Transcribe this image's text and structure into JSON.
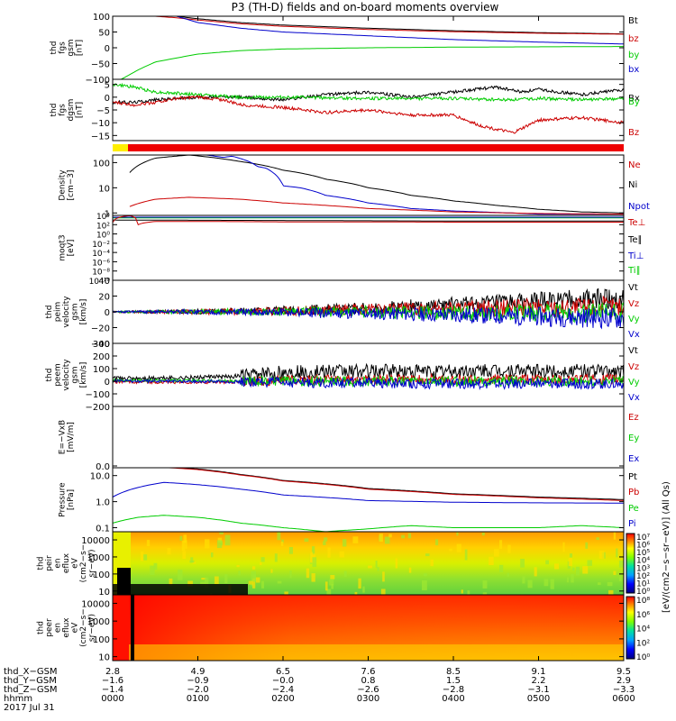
{
  "title": "P3 (TH-D) fields and on-board moments overview",
  "chart_data": [
    {
      "type": "line",
      "id": "fgs",
      "ylabel": [
        "thd",
        "fgs",
        "gsm",
        "[nT]"
      ],
      "ylim": [
        -100,
        100
      ],
      "yticks": [
        100,
        50,
        0,
        -50,
        -100
      ],
      "yticklabels": [
        "100",
        "50",
        "0",
        "−50",
        "−100"
      ],
      "scale": "linear",
      "legend": [
        {
          "label": "Bt",
          "color": "#000000"
        },
        {
          "label": "bz",
          "color": "#cc0000"
        },
        {
          "label": "by",
          "color": "#00cc00"
        },
        {
          "label": "bx",
          "color": "#0000cc"
        }
      ],
      "series": [
        {
          "name": "Bt",
          "color": "#000000",
          "x": [
            0.75,
            1,
            1.5,
            2,
            3,
            4,
            5,
            6
          ],
          "y": [
            100,
            92,
            80,
            72,
            62,
            54,
            48,
            44
          ]
        },
        {
          "name": "bz",
          "color": "#cc0000",
          "x": [
            0.5,
            0.75,
            1,
            1.5,
            2,
            3,
            4,
            5,
            6
          ],
          "y": [
            100,
            95,
            88,
            76,
            68,
            58,
            51,
            46,
            43
          ]
        },
        {
          "name": "bx",
          "color": "#0000cc",
          "x": [
            0.75,
            1,
            1.5,
            2,
            3,
            4,
            5,
            6
          ],
          "y": [
            100,
            80,
            62,
            50,
            38,
            26,
            18,
            12
          ]
        },
        {
          "name": "by",
          "color": "#00cc00",
          "x": [
            0.1,
            0.3,
            0.5,
            1,
            1.5,
            2,
            3,
            4,
            5,
            6
          ],
          "y": [
            -100,
            -70,
            -45,
            -20,
            -9,
            -4,
            0,
            2,
            3,
            4
          ]
        }
      ]
    },
    {
      "type": "line",
      "id": "fgs_dgsm",
      "ylabel": [
        "thd",
        "fgs",
        "dgsm",
        "[nT]"
      ],
      "ylim": [
        -17,
        7
      ],
      "yticks": [
        5,
        0,
        -5,
        -10,
        -15
      ],
      "yticklabels": [
        "5",
        "0",
        "−5",
        "−10",
        "−15"
      ],
      "scale": "linear",
      "legend": [
        {
          "label": "Bx",
          "color": "#000000"
        },
        {
          "label": "By",
          "color": "#00cc00"
        },
        {
          "label": "Bz",
          "color": "#cc0000"
        }
      ],
      "series": [
        {
          "name": "Bx",
          "color": "#000000",
          "x": [
            0,
            0.25,
            0.5,
            1,
            1.5,
            2,
            2.5,
            3,
            3.5,
            4,
            4.5,
            4.8,
            5,
            5.5,
            6
          ],
          "y": [
            -2,
            -2,
            -1,
            0,
            0,
            -1,
            1,
            2,
            0,
            2,
            4,
            2,
            3,
            1,
            3
          ]
        },
        {
          "name": "By",
          "color": "#00cc00",
          "x": [
            0,
            0.25,
            0.5,
            1,
            1.5,
            2,
            3,
            4,
            4.6,
            5,
            5.5,
            6
          ],
          "y": [
            5,
            4,
            2,
            1,
            0,
            0,
            -0.5,
            -0.5,
            -1,
            -0.5,
            -1,
            -0.5
          ]
        },
        {
          "name": "Bz",
          "color": "#cc0000",
          "x": [
            0,
            0.25,
            0.5,
            0.75,
            1,
            1.3,
            1.5,
            2,
            2.5,
            3,
            3.5,
            4,
            4.3,
            4.7,
            5,
            5.5,
            6
          ],
          "y": [
            -2,
            -3,
            -2,
            -0.5,
            0,
            -1,
            -3,
            -4,
            -6,
            -5,
            -7,
            -7,
            -11,
            -14,
            -9,
            -8,
            -10
          ]
        }
      ]
    },
    {
      "type": "line",
      "id": "density",
      "ylabel": [
        "Density",
        "[cm−3]"
      ],
      "ylim": [
        0.8,
        200
      ],
      "yticks": [
        100,
        10,
        1
      ],
      "yticklabels": [
        "100",
        "10",
        "1"
      ],
      "scale": "log",
      "legend": [
        {
          "label": "Ne",
          "color": "#cc0000"
        },
        {
          "label": "Ni",
          "color": "#000000"
        },
        {
          "label": "Npot",
          "color": "#0000cc"
        }
      ],
      "series": [
        {
          "name": "Ni",
          "color": "#000000",
          "x": [
            0.2,
            0.5,
            0.9,
            1.5,
            2,
            2.5,
            3,
            3.5,
            4,
            4.5,
            5,
            5.5,
            6
          ],
          "y": [
            40,
            150,
            200,
            110,
            50,
            22,
            10,
            5,
            3,
            2,
            1.4,
            1.1,
            1
          ]
        },
        {
          "name": "Npot",
          "color": "#0000cc",
          "x": [
            1.1,
            1.3,
            1.4,
            1.6,
            1.7,
            1.8,
            2,
            2.2,
            2.5,
            3,
            3.5,
            4,
            5,
            6
          ],
          "y": [
            200,
            160,
            180,
            110,
            70,
            60,
            12,
            10,
            5,
            2.5,
            1.5,
            1.2,
            0.9,
            0.9
          ]
        },
        {
          "name": "Ne",
          "color": "#cc0000",
          "x": [
            0.2,
            0.5,
            0.9,
            1.5,
            2,
            3,
            4,
            5,
            6
          ],
          "y": [
            1.8,
            3.5,
            4.2,
            3.5,
            2.5,
            1.5,
            1.1,
            0.95,
            0.9
          ]
        }
      ]
    },
    {
      "type": "line",
      "id": "moqt",
      "ylabel": [
        "moqt3",
        "[eV]"
      ],
      "ylim": [
        1e-10,
        10000.0
      ],
      "yticks": [
        10000.0,
        100.0,
        1.0,
        0.01,
        0.0001,
        1e-06,
        1e-08,
        1e-10
      ],
      "yticklabels": [
        "10⁴",
        "10²",
        "10⁰",
        "10⁻²",
        "10⁻⁴",
        "10⁻⁶",
        "10⁻⁸",
        "10⁻¹⁰"
      ],
      "scale": "log",
      "legend": [
        {
          "label": "Te⊥",
          "color": "#cc0000"
        },
        {
          "label": "Te∥",
          "color": "#000000"
        },
        {
          "label": "Ti⊥",
          "color": "#0000cc"
        },
        {
          "label": "Ti∥",
          "color": "#00cc00"
        }
      ],
      "series": [
        {
          "name": "Ti∥",
          "color": "#00cc00",
          "x": [
            0,
            1,
            2,
            3,
            4,
            5,
            6
          ],
          "y": [
            3000,
            3000,
            3000,
            3000,
            3000,
            3000,
            3000
          ]
        },
        {
          "name": "Ti⊥",
          "color": "#0000cc",
          "x": [
            0,
            1,
            2,
            3,
            4,
            5,
            6
          ],
          "y": [
            4000,
            4000,
            4000,
            4000,
            4000,
            4000,
            4000
          ]
        },
        {
          "name": "Te∥",
          "color": "#000000",
          "x": [
            0,
            1,
            2,
            3,
            4,
            5,
            6
          ],
          "y": [
            1000,
            900,
            800,
            700,
            600,
            600,
            600
          ]
        },
        {
          "name": "Te⊥",
          "color": "#cc0000",
          "x": [
            0,
            0.2,
            0.3,
            0.5,
            1,
            2,
            3,
            4,
            5,
            6
          ],
          "y": [
            300,
            9000,
            100,
            500,
            500,
            400,
            400,
            350,
            350,
            350
          ]
        }
      ]
    },
    {
      "type": "line",
      "id": "peim_velocity",
      "ylabel": [
        "thd",
        "peim",
        "velocity",
        "gsm",
        "[km/s]"
      ],
      "ylim": [
        -40,
        40
      ],
      "yticks": [
        40,
        20,
        0,
        -20,
        -40
      ],
      "yticklabels": [
        "40",
        "20",
        "0",
        "−20",
        "−40"
      ],
      "scale": "linear",
      "legend": [
        {
          "label": "Vt",
          "color": "#000000"
        },
        {
          "label": "Vz",
          "color": "#cc0000"
        },
        {
          "label": "Vy",
          "color": "#00cc00"
        },
        {
          "label": "Vx",
          "color": "#0000cc"
        }
      ],
      "series": [
        {
          "name": "Vt",
          "color": "#000000",
          "x": [
            0,
            1,
            2,
            3,
            4,
            5,
            6
          ],
          "y": [
            0,
            0,
            2,
            5,
            9,
            13,
            18
          ]
        },
        {
          "name": "Vz",
          "color": "#cc0000",
          "x": [
            0,
            1,
            2,
            3,
            4,
            5,
            6
          ],
          "y": [
            0,
            0,
            1,
            3,
            4,
            5,
            6
          ]
        },
        {
          "name": "Vy",
          "color": "#00cc00",
          "x": [
            0,
            1,
            2,
            3,
            4,
            5,
            6
          ],
          "y": [
            0,
            0,
            0,
            0,
            -1,
            -1,
            -2
          ]
        },
        {
          "name": "Vx",
          "color": "#0000cc",
          "x": [
            0,
            1,
            2,
            3,
            4,
            5,
            6
          ],
          "y": [
            0,
            0,
            -1,
            -2,
            -4,
            -6,
            -8
          ]
        }
      ]
    },
    {
      "type": "line",
      "id": "peem_velocity",
      "ylabel": [
        "thd",
        "peem",
        "velocity",
        "gsm",
        "[km/s]"
      ],
      "ylim": [
        -200,
        300
      ],
      "yticks": [
        300,
        200,
        100,
        0,
        -100,
        -200
      ],
      "yticklabels": [
        "300",
        "200",
        "100",
        "0",
        "−100",
        "−200"
      ],
      "scale": "linear",
      "legend": [
        {
          "label": "Vt",
          "color": "#000000"
        },
        {
          "label": "Vz",
          "color": "#cc0000"
        },
        {
          "label": "Vy",
          "color": "#00cc00"
        },
        {
          "label": "Vx",
          "color": "#0000cc"
        }
      ],
      "series": [
        {
          "name": "Vt",
          "color": "#000000",
          "x": [
            0,
            1,
            1.5,
            2,
            3,
            4,
            5,
            6
          ],
          "y": [
            20,
            30,
            40,
            70,
            80,
            80,
            80,
            80
          ]
        },
        {
          "name": "Vz",
          "color": "#cc0000",
          "x": [
            0,
            1,
            1.5,
            2,
            3,
            4,
            5,
            6
          ],
          "y": [
            -5,
            -10,
            -5,
            10,
            15,
            15,
            15,
            15
          ]
        },
        {
          "name": "Vy",
          "color": "#00cc00",
          "x": [
            0,
            1,
            2,
            3,
            4,
            5,
            6
          ],
          "y": [
            5,
            5,
            0,
            0,
            0,
            0,
            0
          ]
        },
        {
          "name": "Vx",
          "color": "#0000cc",
          "x": [
            0,
            1,
            2,
            3,
            4,
            5,
            6
          ],
          "y": [
            0,
            0,
            -10,
            -15,
            -20,
            -20,
            -20
          ]
        }
      ]
    },
    {
      "type": "line",
      "id": "efield",
      "ylabel": [
        "E=−VxB",
        "[mV/m]"
      ],
      "ylim": [
        null,
        null
      ],
      "yticks": [
        0
      ],
      "yticklabels": [
        "0.0"
      ],
      "scale": "linear",
      "legend": [
        {
          "label": "Ez",
          "color": "#cc0000"
        },
        {
          "label": "Ey",
          "color": "#00cc00"
        },
        {
          "label": "Ex",
          "color": "#0000cc"
        }
      ],
      "series": []
    },
    {
      "type": "line",
      "id": "pressure",
      "ylabel": [
        "Pressure",
        "[nPa]"
      ],
      "ylim": [
        0.07,
        20
      ],
      "yticks": [
        10,
        1,
        0.1
      ],
      "yticklabels": [
        "10.0",
        "1.0",
        "0.1"
      ],
      "scale": "log",
      "legend": [
        {
          "label": "Pt",
          "color": "#000000"
        },
        {
          "label": "Pb",
          "color": "#cc0000"
        },
        {
          "label": "Pe",
          "color": "#00cc00"
        },
        {
          "label": "Pi",
          "color": "#0000cc"
        }
      ],
      "series": [
        {
          "name": "Pt",
          "color": "#000000",
          "x": [
            0.55,
            1,
            1.5,
            2,
            3,
            4,
            5,
            6
          ],
          "y": [
            22,
            18,
            11,
            6.5,
            3.2,
            2,
            1.5,
            1.2
          ]
        },
        {
          "name": "Pb",
          "color": "#cc0000",
          "x": [
            0.55,
            1,
            1.5,
            2,
            3,
            4,
            5,
            6
          ],
          "y": [
            21,
            17,
            10.5,
            6.2,
            3,
            1.9,
            1.4,
            1.1
          ]
        },
        {
          "name": "Pi",
          "color": "#0000cc",
          "x": [
            0,
            0.3,
            0.6,
            1,
            1.5,
            2,
            3,
            4,
            5,
            6
          ],
          "y": [
            1.5,
            3.5,
            5.5,
            4.5,
            3,
            1.8,
            1.1,
            0.95,
            0.9,
            0.88
          ]
        },
        {
          "name": "Pe",
          "color": "#00cc00",
          "x": [
            0,
            0.3,
            0.6,
            1,
            1.5,
            2,
            2.5,
            3,
            3.5,
            4,
            4.5,
            5,
            5.5,
            6
          ],
          "y": [
            0.15,
            0.25,
            0.3,
            0.25,
            0.15,
            0.1,
            0.07,
            0.09,
            0.12,
            0.1,
            0.1,
            0.1,
            0.12,
            0.1
          ]
        }
      ]
    },
    {
      "type": "heatmap",
      "id": "peir",
      "ylabel": [
        "thd",
        "peir",
        "en",
        "eflux",
        "eV",
        "(cm2−s−",
        "sr−eV)"
      ],
      "ylim": [
        6,
        30000
      ],
      "yticks": [
        10000,
        1000,
        100,
        10
      ],
      "yticklabels": [
        "10000",
        "1000",
        "100",
        "10"
      ],
      "scale": "log",
      "colorbar": {
        "label": "[eV/(cm2−s−sr−eV)] (All Qs)",
        "ticks": [
          "10⁷",
          "10⁶",
          "10⁵",
          "10⁴",
          "10³",
          "10²",
          "10¹",
          "10⁰"
        ]
      }
    },
    {
      "type": "heatmap",
      "id": "peer",
      "ylabel": [
        "thd",
        "peer",
        "en",
        "eflux",
        "eV",
        "(cm2−s−",
        "sr−eV)"
      ],
      "ylim": [
        6,
        30000
      ],
      "yticks": [
        10000,
        1000,
        100,
        10
      ],
      "yticklabels": [
        "10000",
        "1000",
        "100",
        "10"
      ],
      "scale": "log",
      "colorbar": {
        "label": "[eV/(cm2−s−sr−eV)]",
        "ticks": [
          "10⁸",
          "10⁶",
          "10⁴",
          "10²",
          "10⁰"
        ]
      }
    }
  ],
  "quality_bar": [
    {
      "from": 0,
      "to": 0.18,
      "color": "#ffee00"
    },
    {
      "from": 0.18,
      "to": 6,
      "color": "#ee0000"
    }
  ],
  "x_axis": {
    "hours": [
      0,
      1,
      2,
      3,
      4,
      5,
      6
    ],
    "rows": [
      {
        "label": "thd_X−GSM",
        "values": [
          "2.8",
          "4.9",
          "6.5",
          "7.6",
          "8.5",
          "9.1",
          "9.5"
        ]
      },
      {
        "label": "thd_Y−GSM",
        "values": [
          "−1.6",
          "−0.9",
          "−0.0",
          "0.8",
          "1.5",
          "2.2",
          "2.9"
        ]
      },
      {
        "label": "thd_Z−GSM",
        "values": [
          "−1.4",
          "−2.0",
          "−2.4",
          "−2.6",
          "−2.8",
          "−3.1",
          "−3.3"
        ]
      },
      {
        "label": "hhmm",
        "values": [
          "0000",
          "0100",
          "0200",
          "0300",
          "0400",
          "0500",
          "0600"
        ]
      }
    ],
    "date": "2017 Jul 31"
  }
}
